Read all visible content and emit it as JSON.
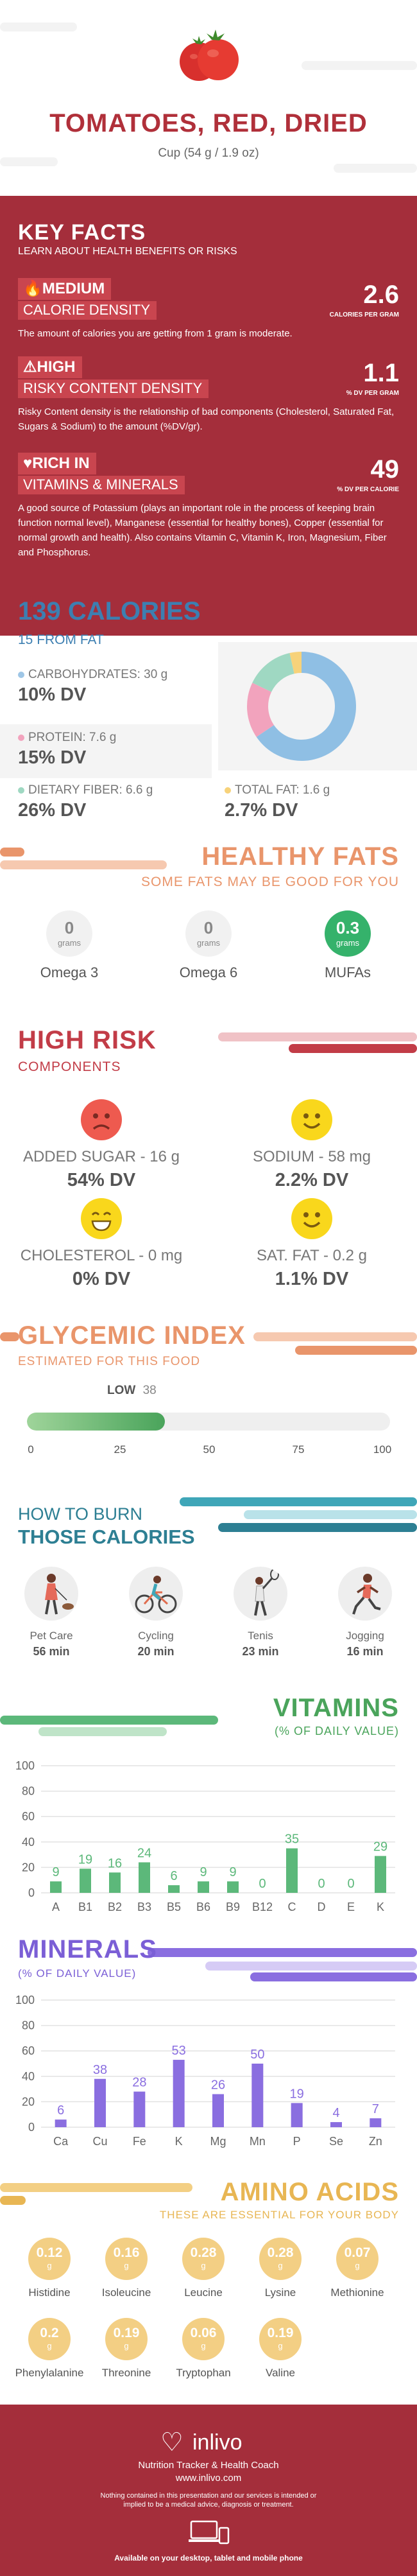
{
  "header": {
    "title": "TOMATOES, RED, DRIED",
    "serving": "Cup (54 g / 1.9 oz)"
  },
  "key_facts": {
    "title": "KEY FACTS",
    "subtitle": "LEARN ABOUT HEALTH BENEFITS OR RISKS",
    "items": [
      {
        "badge": "MEDIUM",
        "label": "CALORIE DENSITY",
        "value": "2.6",
        "unit": "CALORIES PER GRAM",
        "icon": "flame-icon",
        "desc": "The amount of calories you are getting from 1 gram is moderate."
      },
      {
        "badge": "HIGH",
        "label": "RISKY CONTENT DENSITY",
        "value": "1.1",
        "unit": "% DV PER GRAM",
        "icon": "warning-icon",
        "desc": "Risky Content density is the relationship of bad components (Cholesterol, Saturated Fat, Sugars & Sodium) to the amount (%DV/gr)."
      },
      {
        "badge": "RICH  IN",
        "label": "VITAMINS & MINERALS",
        "value": "49",
        "unit": "% DV PER CALORIE",
        "icon": "heart-icon",
        "desc": "A good source of Potassium (plays an important role in the process of keeping brain function normal level), Manganese (essential for healthy bones), Copper (essential for normal growth and health). Also contains Vitamin C, Vitamin K, Iron, Magnesium, Fiber and Phosphorus."
      }
    ]
  },
  "calories": {
    "title": "139 CALORIES",
    "subtitle": "15 FROM FAT",
    "nutrients": [
      {
        "label": "CARBOHYDRATES: 30 g",
        "dv": "10% DV",
        "color": "#9ec6e6"
      },
      {
        "label": "PROTEIN: 7.6 g",
        "dv": "15% DV",
        "color": "#f2a3bd"
      },
      {
        "label": "DIETARY FIBER: 6.6 g",
        "dv": "26% DV",
        "color": "#9fd8c2"
      },
      {
        "label": "TOTAL FAT: 1.6 g",
        "dv": "2.7% DV",
        "color": "#f7d27a"
      }
    ],
    "donut": [
      {
        "name": "carbohydrates",
        "value": 30,
        "color": "#8fbfe4"
      },
      {
        "name": "protein",
        "value": 7.6,
        "color": "#f2a3bd"
      },
      {
        "name": "fiber",
        "value": 6.6,
        "color": "#9fd8c2"
      },
      {
        "name": "fat",
        "value": 1.6,
        "color": "#f7d27a"
      }
    ]
  },
  "fats": {
    "title": "HEALTHY FATS",
    "subtitle": "SOME FATS MAY BE GOOD FOR YOU",
    "items": [
      {
        "name": "Omega 3",
        "value": "0",
        "unit": "grams",
        "highlight": false
      },
      {
        "name": "Omega 6",
        "value": "0",
        "unit": "grams",
        "highlight": false
      },
      {
        "name": "MUFAs",
        "value": "0.3",
        "unit": "grams",
        "highlight": true
      }
    ]
  },
  "risk": {
    "title": "HIGH RISK",
    "subtitle": "COMPONENTS",
    "items": [
      {
        "label": "ADDED SUGAR - 16 g",
        "dv": "54% DV",
        "face": "sad",
        "color": "#ee5a4f"
      },
      {
        "label": "SODIUM - 58 mg",
        "dv": "2.2% DV",
        "face": "happy",
        "color": "#f9d71c"
      },
      {
        "label": "CHOLESTEROL - 0 mg",
        "dv": "0% DV",
        "face": "grin",
        "color": "#f9d71c"
      },
      {
        "label": "SAT. FAT - 0.2 g",
        "dv": "1.1% DV",
        "face": "happy",
        "color": "#f9d71c"
      }
    ]
  },
  "glycemic": {
    "title": "GLYCEMIC INDEX",
    "subtitle": "ESTIMATED FOR THIS FOOD",
    "level": "LOW",
    "value": 38,
    "ticks": [
      "0",
      "25",
      "50",
      "75",
      "100"
    ]
  },
  "burn": {
    "title1": "HOW TO BURN",
    "title2": "THOSE CALORIES",
    "items": [
      {
        "name": "Pet Care",
        "minutes": "56 min",
        "icon": "dog-walking-icon"
      },
      {
        "name": "Cycling",
        "minutes": "20 min",
        "icon": "cycling-icon"
      },
      {
        "name": "Tenis",
        "minutes": "23 min",
        "icon": "tennis-icon"
      },
      {
        "name": "Jogging",
        "minutes": "16 min",
        "icon": "jogging-icon"
      }
    ]
  },
  "vitamins": {
    "title": "VITAMINS",
    "subtitle": "(% OF DAILY VALUE)",
    "chart_data": {
      "type": "bar",
      "categories": [
        "A",
        "B1",
        "B2",
        "B3",
        "B5",
        "B6",
        "B9",
        "B12",
        "C",
        "D",
        "E",
        "K"
      ],
      "values": [
        9,
        19,
        16,
        24,
        6,
        9,
        9,
        0,
        35,
        0,
        0,
        29
      ],
      "ylim": [
        0,
        100
      ],
      "yticks": [
        0,
        20,
        40,
        60,
        80,
        100
      ],
      "color": "#5cb87a"
    }
  },
  "minerals": {
    "title": "MINERALS",
    "subtitle": "(% OF DAILY VALUE)",
    "chart_data": {
      "type": "bar",
      "categories": [
        "Ca",
        "Cu",
        "Fe",
        "K",
        "Mg",
        "Mn",
        "P",
        "Se",
        "Zn"
      ],
      "values": [
        6,
        38,
        28,
        53,
        26,
        50,
        19,
        4,
        7
      ],
      "ylim": [
        0,
        100
      ],
      "yticks": [
        0,
        20,
        40,
        60,
        80,
        100
      ],
      "color": "#8a6ee0"
    }
  },
  "amino": {
    "title": "AMINO ACIDS",
    "subtitle": "THESE ARE ESSENTIAL FOR YOUR BODY",
    "unit": "g",
    "items": [
      {
        "name": "Histidine",
        "value": "0.12"
      },
      {
        "name": "Isoleucine",
        "value": "0.16"
      },
      {
        "name": "Leucine",
        "value": "0.28"
      },
      {
        "name": "Lysine",
        "value": "0.28"
      },
      {
        "name": "Methionine",
        "value": "0.07"
      },
      {
        "name": "Phenylalanine",
        "value": "0.2"
      },
      {
        "name": "Threonine",
        "value": "0.19"
      },
      {
        "name": "Tryptophan",
        "value": "0.06"
      },
      {
        "name": "Valine",
        "value": "0.19"
      }
    ]
  },
  "footer": {
    "brand": "inlivo",
    "tagline": "Nutrition Tracker & Health Coach",
    "url": "www.inlivo.com",
    "disclaimer": "Nothing contained in this presentation and our services is intended or implied to be a medical advice, diagnosis or treatment.",
    "available": "Available on your desktop, tablet and mobile phone"
  }
}
